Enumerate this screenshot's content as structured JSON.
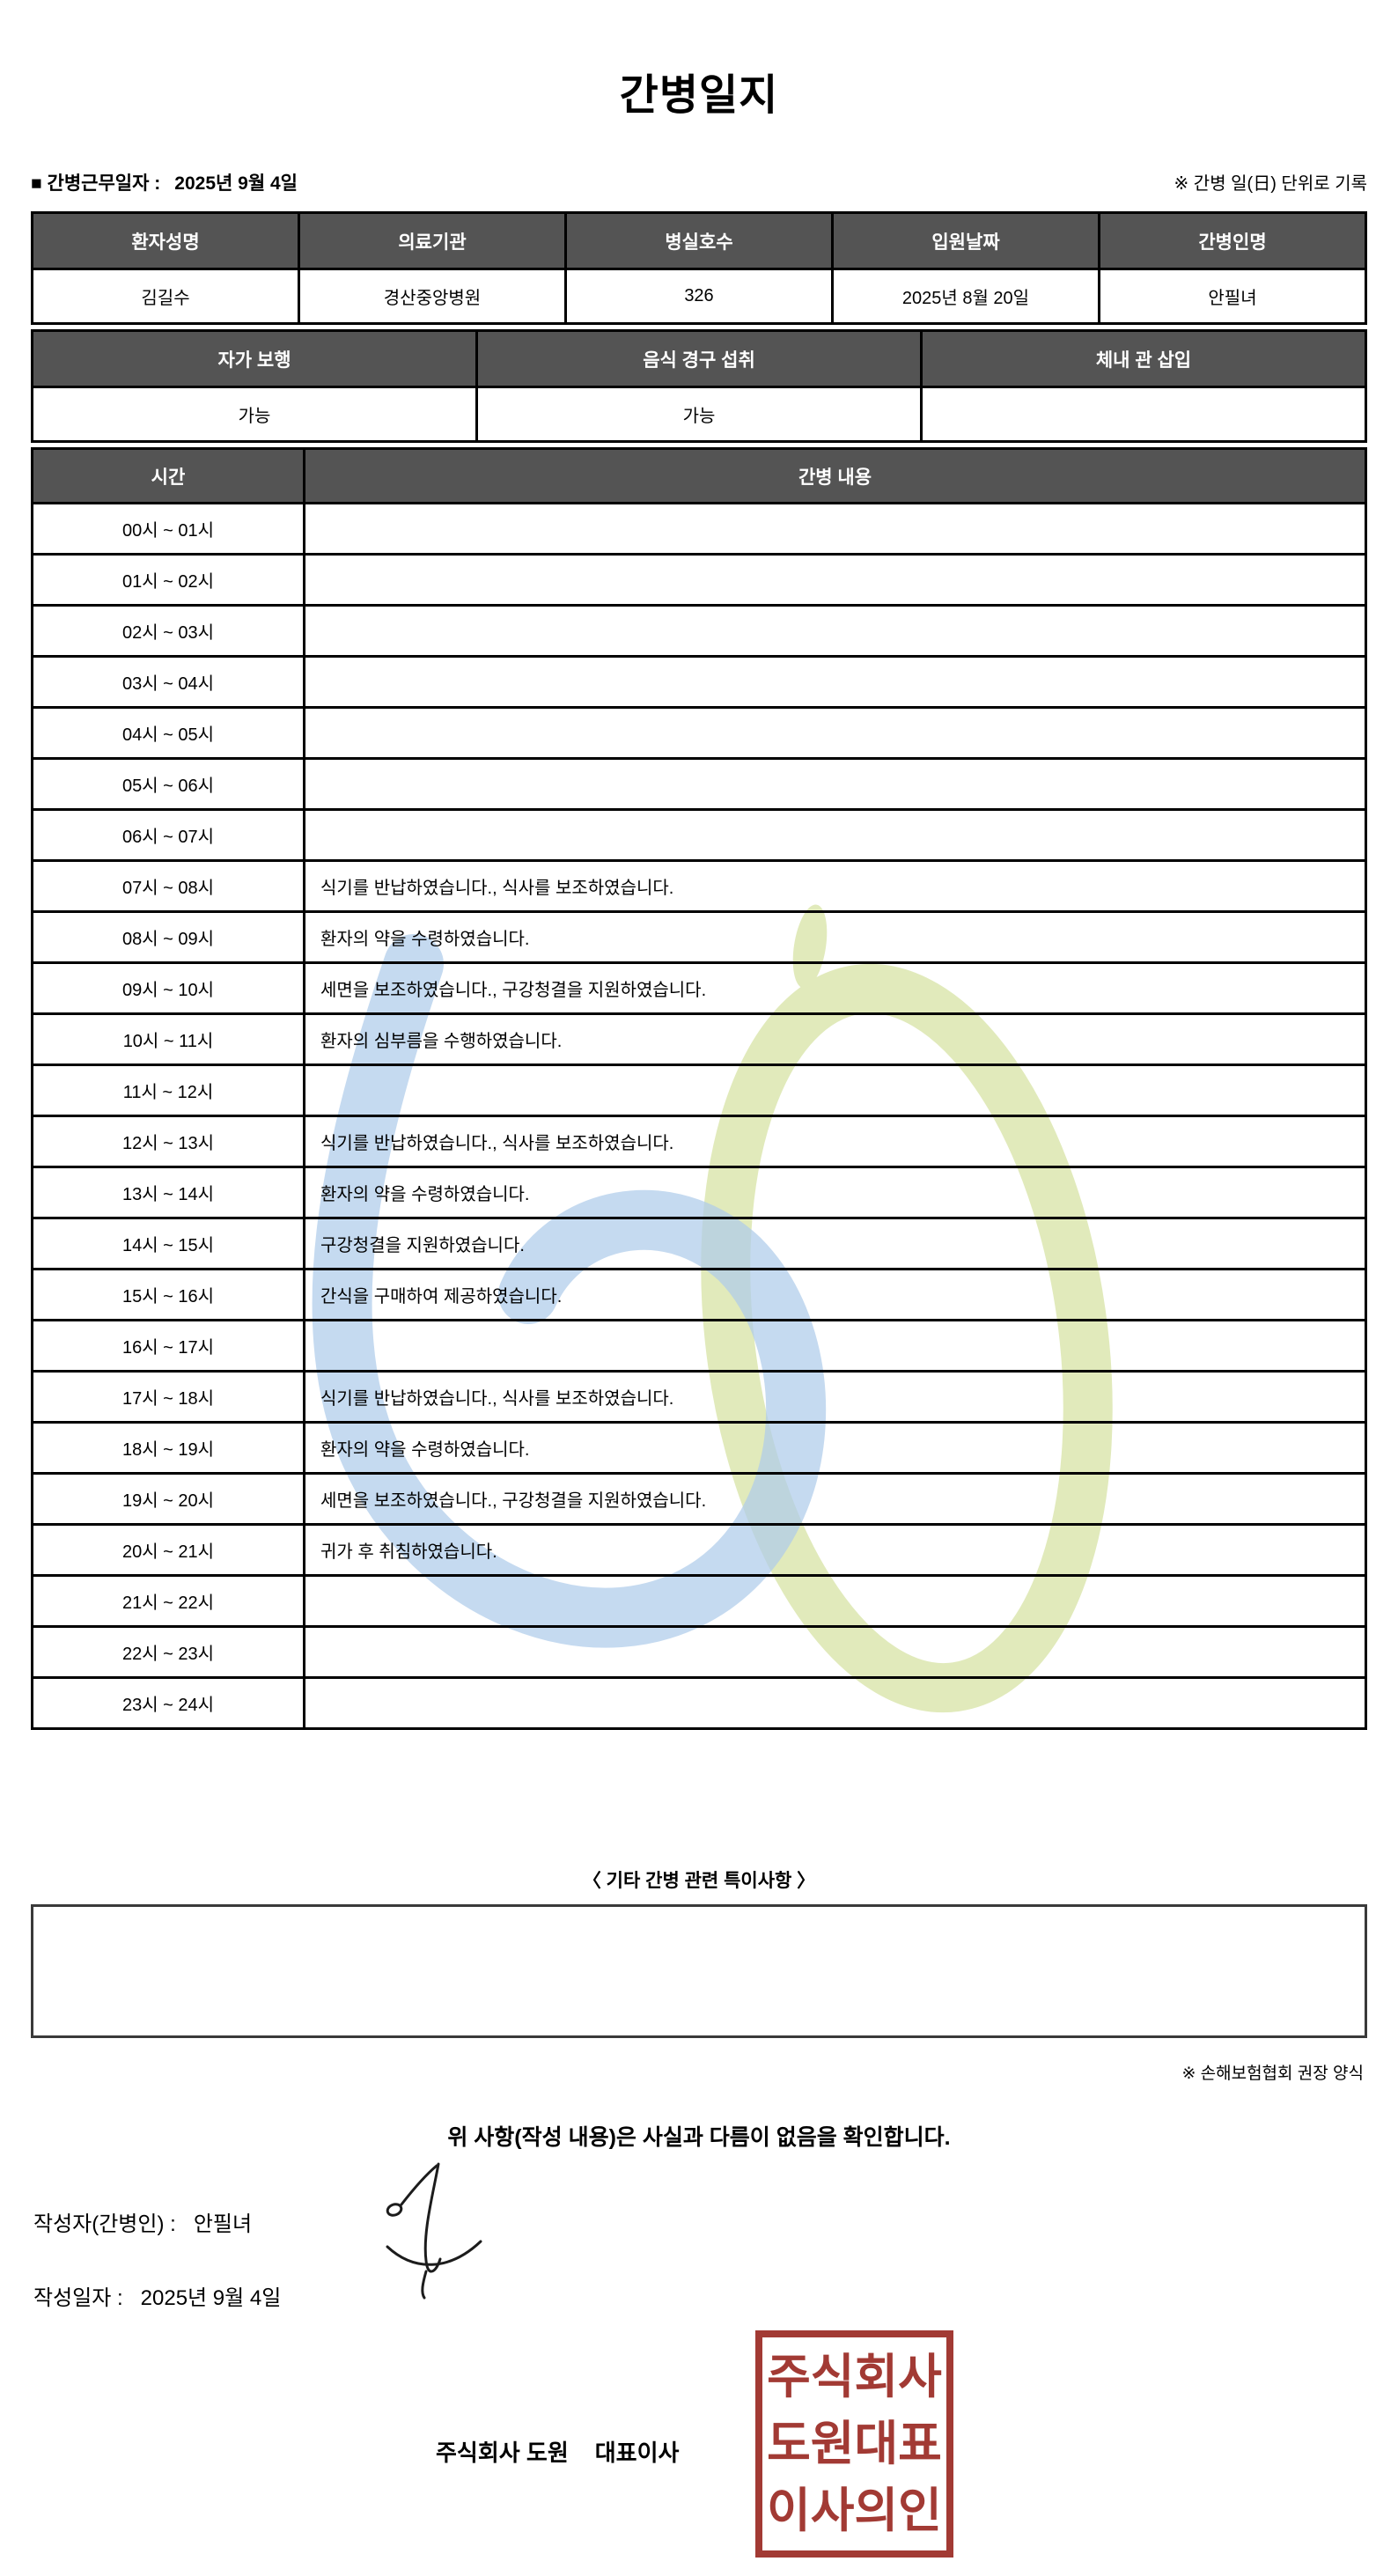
{
  "title": "간병일지",
  "header": {
    "work_date_label": "■ 간병근무일자  :",
    "work_date_value": "2025년 9월 4일",
    "unit_note": "※ 간병 일(日) 단위로 기록"
  },
  "patient_table": {
    "headers": [
      "환자성명",
      "의료기관",
      "병실호수",
      "입원날짜",
      "간병인명"
    ],
    "values": [
      "김길수",
      "경산중앙병원",
      "326",
      "2025년 8월 20일",
      "안필녀"
    ]
  },
  "condition_table": {
    "headers": [
      "자가 보행",
      "음식 경구 섭취",
      "체내 관 삽입"
    ],
    "values": [
      "가능",
      "가능",
      ""
    ]
  },
  "care_table": {
    "time_header": "시간",
    "content_header": "간병 내용",
    "rows": [
      {
        "time": "00시 ~ 01시",
        "content": ""
      },
      {
        "time": "01시 ~ 02시",
        "content": ""
      },
      {
        "time": "02시 ~ 03시",
        "content": ""
      },
      {
        "time": "03시 ~ 04시",
        "content": ""
      },
      {
        "time": "04시 ~ 05시",
        "content": ""
      },
      {
        "time": "05시 ~ 06시",
        "content": ""
      },
      {
        "time": "06시 ~ 07시",
        "content": ""
      },
      {
        "time": "07시 ~ 08시",
        "content": "식기를 반납하였습니다., 식사를 보조하였습니다."
      },
      {
        "time": "08시 ~ 09시",
        "content": "환자의 약을 수령하였습니다."
      },
      {
        "time": "09시 ~ 10시",
        "content": "세면을 보조하였습니다., 구강청결을 지원하였습니다."
      },
      {
        "time": "10시 ~ 11시",
        "content": "환자의 심부름을 수행하였습니다."
      },
      {
        "time": "11시 ~ 12시",
        "content": ""
      },
      {
        "time": "12시 ~ 13시",
        "content": "식기를 반납하였습니다., 식사를 보조하였습니다."
      },
      {
        "time": "13시 ~ 14시",
        "content": "환자의 약을 수령하였습니다."
      },
      {
        "time": "14시 ~ 15시",
        "content": "구강청결을 지원하였습니다."
      },
      {
        "time": "15시 ~ 16시",
        "content": "간식을 구매하여 제공하였습니다."
      },
      {
        "time": "16시 ~ 17시",
        "content": ""
      },
      {
        "time": "17시 ~ 18시",
        "content": "식기를 반납하였습니다., 식사를 보조하였습니다."
      },
      {
        "time": "18시 ~ 19시",
        "content": "환자의 약을 수령하였습니다."
      },
      {
        "time": "19시 ~ 20시",
        "content": "세면을 보조하였습니다., 구강청결을 지원하였습니다."
      },
      {
        "time": "20시 ~ 21시",
        "content": "귀가 후 취침하였습니다."
      },
      {
        "time": "21시 ~ 22시",
        "content": ""
      },
      {
        "time": "22시 ~ 23시",
        "content": ""
      },
      {
        "time": "23시 ~ 24시",
        "content": ""
      }
    ]
  },
  "notes": {
    "heading": "〈 기타 간병 관련 특이사항 〉",
    "content": "",
    "form_note": "※ 손해보험협회 권장 양식"
  },
  "footer": {
    "confirmation": "위 사항(작성 내용)은 사실과 다름이 없음을 확인합니다.",
    "writer_label": "작성자(간병인) :",
    "writer_name": "안필녀",
    "date_label": "작성일자 :",
    "date_value": "2025년 9월 4일",
    "company": "주식회사 도원",
    "ceo": "대표이사",
    "stamp_lines": [
      "주식회사",
      "도원대표",
      "이사의인"
    ]
  },
  "colors": {
    "table_header_bg": "#545454",
    "table_header_text": "#ffffff",
    "border": "#000000",
    "stamp_red": "#A23A34",
    "watermark_blue": "#AECCEA",
    "watermark_green": "#DCE7B0"
  }
}
